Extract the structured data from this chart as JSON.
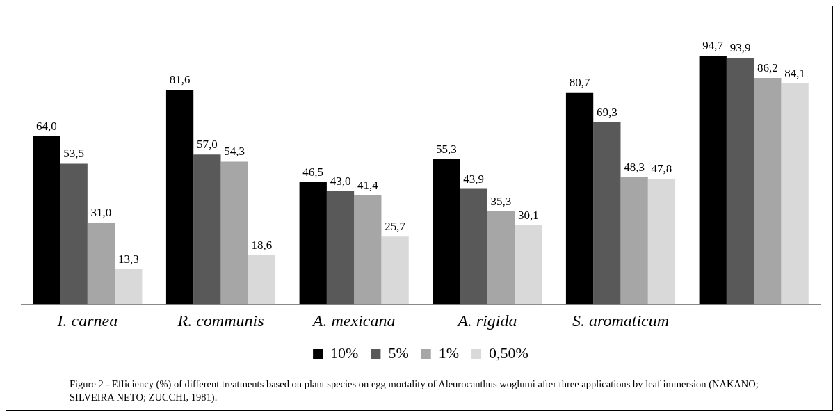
{
  "chart_data": {
    "type": "bar",
    "categories": [
      "I. carnea",
      "R. communis",
      "A. mexicana",
      "A. rigida",
      "S. aromaticum",
      null
    ],
    "tick_labels": "x",
    "grid": false,
    "legend": "bottom",
    "series": [
      {
        "name": "10%",
        "color": "#000000",
        "values": [
          64.0,
          81.6,
          46.5,
          55.3,
          80.7,
          94.7
        ],
        "value_labels": [
          "64,0",
          "81,6",
          "46,5",
          "55,3",
          "80,7",
          "94,7"
        ]
      },
      {
        "name": "5%",
        "color": "#595959",
        "values": [
          53.5,
          57.0,
          43.0,
          43.9,
          69.3,
          93.9
        ],
        "value_labels": [
          "53,5",
          "57,0",
          "43,0",
          "43,9",
          "69,3",
          "93,9"
        ]
      },
      {
        "name": "1%",
        "color": "#a6a6a6",
        "values": [
          31.0,
          54.3,
          41.4,
          35.3,
          48.3,
          86.2
        ],
        "value_labels": [
          "31,0",
          "54,3",
          "41,4",
          "35,3",
          "48,3",
          "86,2"
        ]
      },
      {
        "name": "0,50%",
        "color": "#d9d9d9",
        "values": [
          13.3,
          18.6,
          25.7,
          30.1,
          47.8,
          84.1
        ],
        "value_labels": [
          "13,3",
          "18,6",
          "25,7",
          "30,1",
          "47,8",
          "84,1"
        ]
      }
    ],
    "annotations": [
      "Figure 2 - Efficiency (%) of different treatments based on plant species on egg mortality of Aleurocanthus woglumi after three applications by leaf immersion (NAKANO; SILVEIRA NETO; ZUCCHI, 1981)."
    ]
  }
}
